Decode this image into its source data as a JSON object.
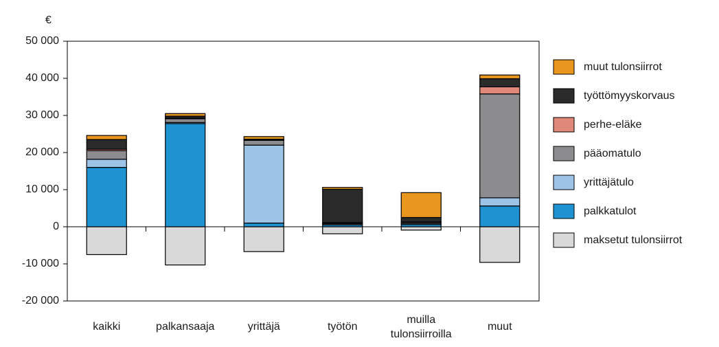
{
  "chart_data": {
    "type": "bar",
    "stacked": true,
    "y_label": "€",
    "categories": [
      "kaikki",
      "palkansaaja",
      "yrittäjä",
      "työtön",
      "muilla tulonsiirroilla",
      "muut"
    ],
    "series": [
      {
        "name": "maksetut tulonsiirrot",
        "color": "#d9d9d9",
        "values": [
          -7500,
          -10300,
          -6700,
          -1900,
          -900,
          -9600
        ]
      },
      {
        "name": "palkkatulot",
        "color": "#1f93d1",
        "values": [
          16000,
          27800,
          1000,
          500,
          600,
          5600
        ]
      },
      {
        "name": "yrittäjätulo",
        "color": "#9dc3e6",
        "values": [
          2200,
          300,
          21000,
          300,
          300,
          2200
        ]
      },
      {
        "name": "pääomatulo",
        "color": "#8c8c8f",
        "values": [
          2300,
          1000,
          1300,
          200,
          300,
          28000
        ]
      },
      {
        "name": "perhe-eläke",
        "color": "#e0897a",
        "values": [
          400,
          200,
          100,
          100,
          100,
          1900
        ]
      },
      {
        "name": "työttömyyskorvaus",
        "color": "#2b2b2b",
        "values": [
          2600,
          500,
          200,
          9000,
          1200,
          2200
        ]
      },
      {
        "name": "muut tulonsiirrot",
        "color": "#e8961e",
        "values": [
          1100,
          700,
          700,
          500,
          6700,
          1000
        ]
      }
    ],
    "ylim": [
      -20000,
      50000
    ],
    "yticks": [
      {
        "value": -20000,
        "label": "-20 000"
      },
      {
        "value": -10000,
        "label": "-10 000"
      },
      0,
      {
        "value": 10000,
        "label": "10 000"
      },
      {
        "value": 20000,
        "label": "20 000"
      },
      {
        "value": 30000,
        "label": "30 000"
      },
      {
        "value": 40000,
        "label": "40 000"
      },
      {
        "value": 50000,
        "label": "50 000"
      }
    ],
    "legend": "right"
  }
}
